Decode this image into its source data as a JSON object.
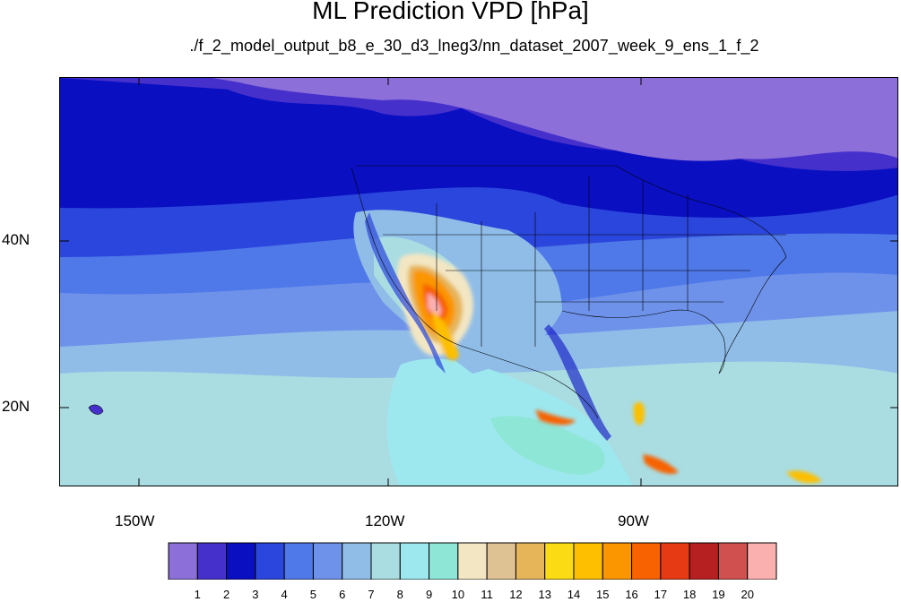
{
  "title": "ML Prediction VPD [hPa]",
  "subtitle": "./f_2_model_output_b8_e_30_d3_lneg3/nn_dataset_2007_week_9_ens_1_f_2",
  "axes": {
    "lat_labels": [
      "40N",
      "20N"
    ],
    "lon_labels": [
      "150W",
      "120W",
      "90W"
    ]
  },
  "colorbar": {
    "labels": [
      "1",
      "2",
      "3",
      "4",
      "5",
      "6",
      "7",
      "8",
      "9",
      "10",
      "11",
      "12",
      "13",
      "14",
      "15",
      "16",
      "17",
      "18",
      "19",
      "20"
    ],
    "colors": [
      "#8c6fd8",
      "#4630cc",
      "#0a0fc2",
      "#2b46dc",
      "#4f78e8",
      "#6e92ea",
      "#8fbde8",
      "#a9dde2",
      "#9de8ef",
      "#8ee6d6",
      "#f3e6c2",
      "#dfc294",
      "#e6b55a",
      "#fbdc14",
      "#fdbf00",
      "#fb9500",
      "#f86200",
      "#e63a14",
      "#b62020",
      "#d05050",
      "#fbb0b0"
    ]
  },
  "chart_data": {
    "type": "heatmap",
    "title": "ML Prediction VPD [hPa]",
    "variable": "VPD [hPa]",
    "lon_range": [
      -160,
      -61
    ],
    "lat_range": [
      10,
      58
    ],
    "lat_ticks": [
      40,
      20
    ],
    "lon_ticks": [
      -150,
      -120,
      -90
    ],
    "levels": [
      1,
      2,
      3,
      4,
      5,
      6,
      7,
      8,
      9,
      10,
      11,
      12,
      13,
      14,
      15,
      16,
      17,
      18,
      19,
      20
    ],
    "high_regions": [
      "Southwest US / Baja California",
      "Southern Mexico"
    ],
    "legend_placement": "bottom"
  }
}
